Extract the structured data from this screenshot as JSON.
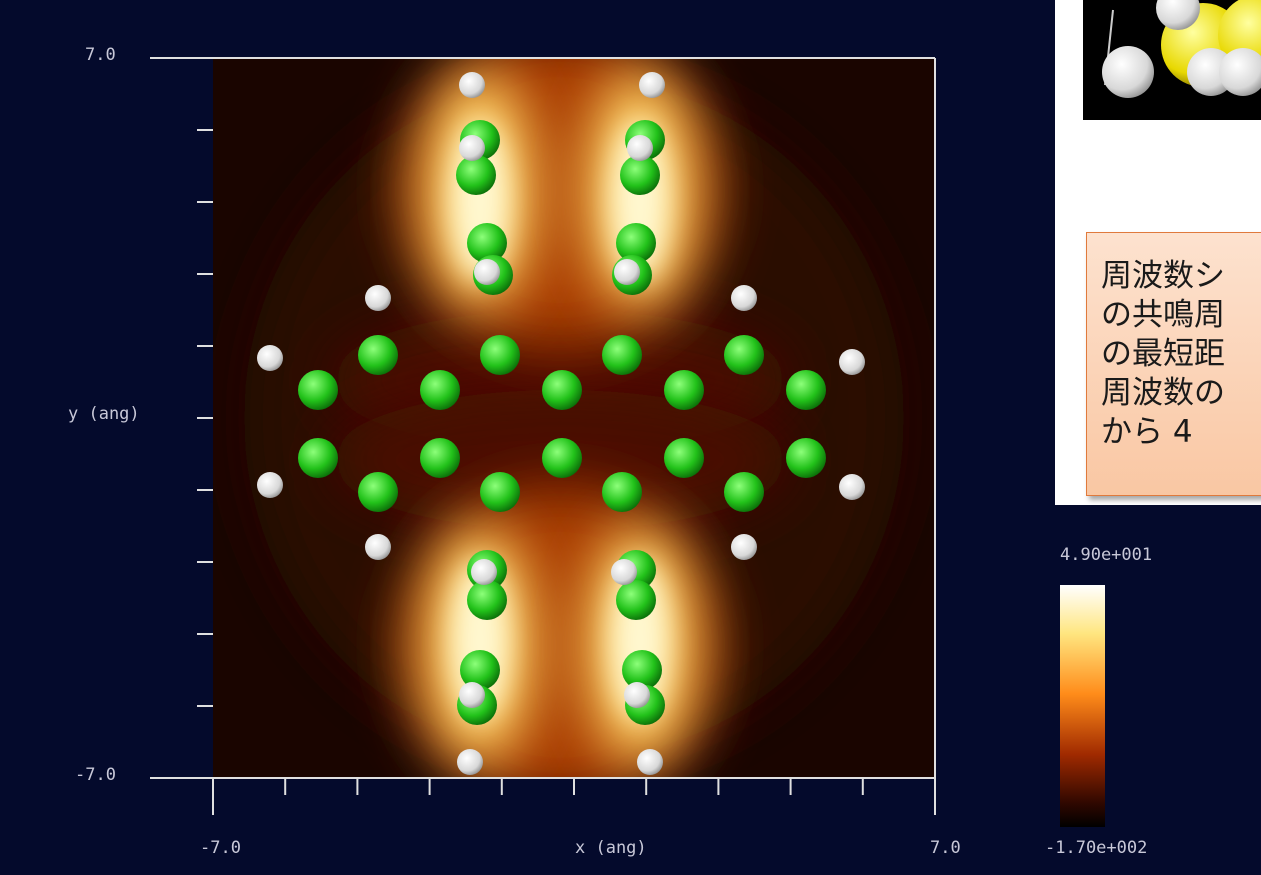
{
  "plot": {
    "y_max_label": "7.0",
    "y_min_label": "-7.0",
    "y_label": "y (ang)",
    "x_min_label": "-7.0",
    "x_label": "x (ang)",
    "x_max_label": "7.0"
  },
  "colorbar": {
    "max_label": "4.90e+001",
    "min_label": "-1.70e+002"
  },
  "callout": {
    "lines": [
      "周波数シ",
      "の共鳴周",
      "の最短距",
      "周波数の",
      "から 4"
    ]
  }
}
